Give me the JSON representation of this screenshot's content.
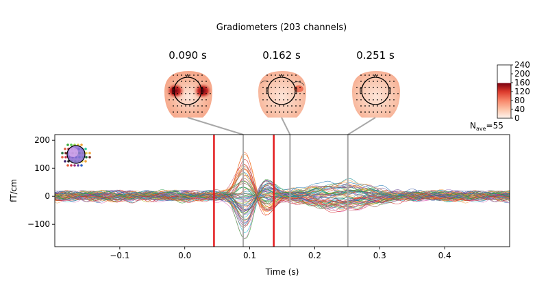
{
  "figure": {
    "suptitle": "Gradiometers (203 channels)",
    "topomap_times": [
      "0.090 s",
      "0.162 s",
      "0.251 s"
    ],
    "nave_label": "N",
    "nave_sub": "ave",
    "nave_value": "=55"
  },
  "colorbar": {
    "ticks": [
      "240",
      "200",
      "160",
      "120",
      "80",
      "40",
      "0"
    ],
    "cmap": [
      "#ffffff",
      "#fde0d2",
      "#fcb398",
      "#f7805e",
      "#e04a33",
      "#b81a1a",
      "#7a0010"
    ]
  },
  "chart_data": {
    "type": "line",
    "title": "",
    "xlabel": "Time (s)",
    "ylabel": "fT/cm",
    "xlim": [
      -0.2,
      0.5
    ],
    "ylim": [
      -180,
      220
    ],
    "xticks": [
      -0.1,
      0.0,
      0.1,
      0.2,
      0.3,
      0.4
    ],
    "xtick_labels": [
      "−0.1",
      "0.0",
      "0.1",
      "0.2",
      "0.3",
      "0.4"
    ],
    "yticks": [
      -100,
      0,
      100,
      200
    ],
    "ytick_labels": [
      "−100",
      "0",
      "100",
      "200"
    ],
    "grid": false,
    "red_markers_x": [
      0.045,
      0.137
    ],
    "gray_markers_x": [
      0.09,
      0.162,
      0.251
    ],
    "n_channels": 203,
    "peak_amplitude": 200,
    "series_colors": [
      "#1f77b4",
      "#ff7f0e",
      "#2ca02c",
      "#d62728",
      "#9467bd",
      "#8c564b",
      "#e377c2",
      "#17becf",
      "#bcbd22",
      "#e8662e",
      "#3b5ba5",
      "#41a85f",
      "#c7415b",
      "#0f8b8d",
      "#f2a65a",
      "#6a4c93"
    ]
  }
}
